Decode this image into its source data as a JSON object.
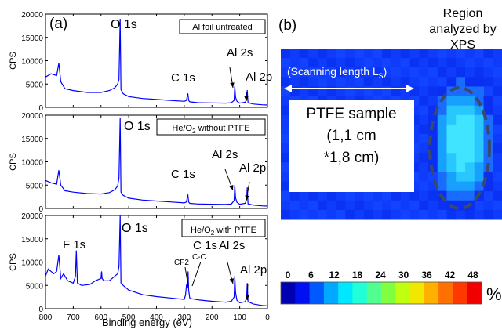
{
  "chart_data": [
    {
      "type": "line",
      "panel_label": "(a)",
      "legend": "Al foil untreated",
      "ylabel": "CPS",
      "xlim": [
        800,
        0
      ],
      "ylim": [
        0,
        20000
      ],
      "yticks": [
        "0",
        "5000",
        "10000",
        "15000",
        "20000"
      ],
      "xticks": [],
      "peak_labels": [
        "O 1s",
        "C 1s",
        "Al 2s",
        "Al 2p"
      ],
      "series": [
        {
          "x": [
            800,
            780,
            760,
            752,
            745,
            730,
            700,
            650,
            600,
            570,
            550,
            540,
            535,
            531,
            528,
            520,
            500,
            450,
            400,
            350,
            300,
            292,
            287,
            284,
            280,
            250,
            200,
            150,
            130,
            120,
            118,
            115,
            110,
            100,
            80,
            75,
            73,
            70,
            50,
            20,
            0
          ],
          "values": [
            6500,
            7200,
            6800,
            9500,
            5500,
            4000,
            3600,
            3200,
            3200,
            3600,
            4200,
            5000,
            6000,
            19000,
            3800,
            2900,
            2300,
            1900,
            1700,
            1500,
            1300,
            1500,
            3000,
            1500,
            1200,
            1000,
            950,
            900,
            1000,
            1500,
            4500,
            2200,
            1300,
            900,
            1100,
            1800,
            3700,
            1000,
            700,
            550,
            500
          ]
        }
      ]
    },
    {
      "type": "line",
      "legend": "He/O2 without PTFE",
      "ylabel": "CPS",
      "xlim": [
        800,
        0
      ],
      "ylim": [
        0,
        20000
      ],
      "yticks": [
        "0",
        "5000",
        "10000",
        "15000",
        "20000"
      ],
      "xticks": [],
      "peak_labels": [
        "O 1s",
        "C 1s",
        "Al 2s",
        "Al 2p"
      ],
      "series": [
        {
          "x": [
            800,
            780,
            760,
            752,
            745,
            730,
            700,
            650,
            600,
            570,
            550,
            540,
            535,
            531,
            528,
            520,
            500,
            450,
            400,
            350,
            300,
            292,
            287,
            284,
            280,
            250,
            200,
            150,
            130,
            120,
            118,
            115,
            110,
            100,
            80,
            75,
            73,
            70,
            50,
            20,
            0
          ],
          "values": [
            6000,
            5500,
            5200,
            8200,
            5000,
            3800,
            3500,
            3200,
            3100,
            3400,
            4000,
            4800,
            6500,
            19500,
            3500,
            2800,
            2200,
            1800,
            1600,
            1400,
            1200,
            1400,
            3000,
            1400,
            1100,
            950,
            900,
            850,
            950,
            1700,
            5000,
            2300,
            1300,
            900,
            1100,
            2000,
            4500,
            1000,
            700,
            550,
            500
          ]
        }
      ]
    },
    {
      "type": "line",
      "legend": "He/O2 with PTFE",
      "ylabel": "CPS",
      "xlabel": "Binding energy (eV)",
      "xlim": [
        800,
        0
      ],
      "ylim": [
        0,
        20000
      ],
      "yticks": [
        "0",
        "5000",
        "10000",
        "15000",
        "20000"
      ],
      "xticks": [
        "800",
        "700",
        "600",
        "500",
        "400",
        "300",
        "200",
        "100",
        "0"
      ],
      "peak_labels": [
        "F 1s",
        "O 1s",
        "C 1s",
        "Al 2s",
        "Al 2p"
      ],
      "annotations": [
        "CF2",
        "C-C"
      ],
      "series": [
        {
          "x": [
            800,
            790,
            770,
            760,
            752,
            745,
            735,
            720,
            700,
            692,
            689,
            685,
            670,
            640,
            620,
            600,
            598,
            596,
            590,
            570,
            550,
            540,
            535,
            531,
            528,
            520,
            500,
            450,
            400,
            350,
            300,
            295,
            292,
            288,
            286,
            284,
            280,
            250,
            200,
            150,
            130,
            120,
            118,
            115,
            110,
            100,
            80,
            75,
            73,
            70,
            50,
            20,
            0
          ],
          "values": [
            7000,
            8500,
            7500,
            8000,
            11500,
            6500,
            7500,
            6000,
            5500,
            7000,
            12500,
            5500,
            5000,
            5200,
            6000,
            6500,
            8000,
            6500,
            6000,
            6000,
            7000,
            7500,
            9000,
            20000,
            5500,
            5000,
            4000,
            3000,
            2600,
            2300,
            2000,
            3000,
            5000,
            4500,
            8000,
            4000,
            2200,
            1900,
            1600,
            1400,
            1600,
            2500,
            7000,
            3500,
            1800,
            1300,
            1500,
            2500,
            5500,
            1500,
            1000,
            700,
            600
          ]
        }
      ]
    },
    {
      "type": "heatmap",
      "panel_label": "(b)",
      "annotations": [
        "Region analyzed by XPS",
        "(Scanning length L",
        "s",
        ")"
      ],
      "sample_label": [
        "PTFE sample",
        "(1,1 cm",
        "*1,8 cm)"
      ],
      "colorbar": {
        "ticks": [
          "0",
          "6",
          "12",
          "18",
          "24",
          "30",
          "36",
          "42",
          "48"
        ],
        "unit": "%",
        "colors": [
          "#0000b0",
          "#0010f0",
          "#0058ff",
          "#00a8ff",
          "#00e8ff",
          "#20ffd8",
          "#50ff90",
          "#80ff40",
          "#c0ff10",
          "#f0e800",
          "#ffb000",
          "#ff7000",
          "#ff3800",
          "#f00000"
        ]
      },
      "grid_colors": {
        "background": "#1040ff",
        "edge": "#0a2ff0",
        "light": "#18a0ff",
        "lighter": "#28c8ff",
        "cyan": "#40e4ff"
      }
    }
  ]
}
